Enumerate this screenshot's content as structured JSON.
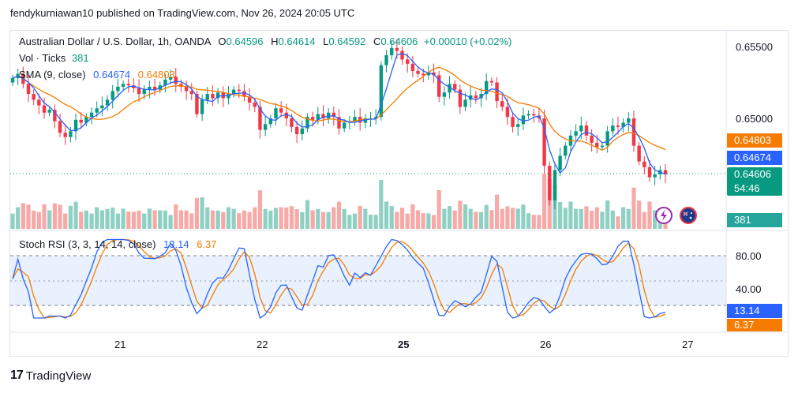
{
  "header": {
    "published_by": "fendykurniawan10 published on TradingView.com, Nov 26, 2024 20:05 UTC"
  },
  "legend": {
    "symbol": "Australian Dollar / U.S. Dollar, 1h, OANDA",
    "o_label": "O",
    "o_value": "0.64596",
    "h_label": "H",
    "h_value": "0.64614",
    "l_label": "L",
    "l_value": "0.64592",
    "c_label": "C",
    "c_value": "0.64606",
    "change": "+0.00010 (+0.02%)",
    "vol_label": "Vol · Ticks",
    "vol_value": "381",
    "sma_label": "SMA (9, close)",
    "sma_blue": "0.64674",
    "sma_orange": "0.64803",
    "stoch_label": "Stoch RSI (3, 3, 14, 14, close)",
    "stoch_k": "13.14",
    "stoch_d": "6.37"
  },
  "price_axis": {
    "ticks": [
      "0.65500",
      "0.65000"
    ],
    "tags": [
      {
        "label": "0.64803",
        "color": "#f57c00"
      },
      {
        "label": "0.64674",
        "color": "#2962ff"
      },
      {
        "label": "0.64606",
        "color": "#089981"
      },
      {
        "label": "54:46",
        "color": "#089981"
      },
      {
        "label": "381",
        "color": "#26a69a"
      }
    ]
  },
  "stoch_axis": {
    "ticks": [
      "80.00",
      "40.00"
    ],
    "tags": [
      {
        "label": "13.14",
        "color": "#2962ff"
      },
      {
        "label": "6.37",
        "color": "#f57c00"
      }
    ]
  },
  "time_axis": {
    "labels": [
      "21",
      "22",
      "25",
      "26",
      "27"
    ]
  },
  "colors": {
    "up": "#089981",
    "down": "#f23645",
    "sma_fast": "#2962ff",
    "sma_slow": "#f57c00",
    "vol_up": "#8fd0c4",
    "vol_down": "#f7a9a7"
  },
  "branding": {
    "logo_mark": "17",
    "logo_text": "TradingView"
  },
  "chart_data": {
    "type": "candlestick",
    "timeframe": "1h",
    "price_range": [
      0.6427,
      0.6558
    ],
    "close_series": [
      0.6528,
      0.6531,
      0.6524,
      0.6517,
      0.6513,
      0.6509,
      0.6504,
      0.6506,
      0.6498,
      0.649,
      0.6487,
      0.6491,
      0.6499,
      0.6497,
      0.6501,
      0.6504,
      0.6507,
      0.6509,
      0.6513,
      0.6519,
      0.6522,
      0.6524,
      0.6523,
      0.6521,
      0.6517,
      0.652,
      0.6522,
      0.652,
      0.6523,
      0.6527,
      0.6529,
      0.6524,
      0.6522,
      0.6519,
      0.6517,
      0.6503,
      0.6513,
      0.6517,
      0.6514,
      0.6518,
      0.6514,
      0.6517,
      0.652,
      0.6519,
      0.6515,
      0.6511,
      0.6508,
      0.6492,
      0.6496,
      0.65,
      0.6507,
      0.6504,
      0.65,
      0.6494,
      0.6489,
      0.6493,
      0.6501,
      0.6499,
      0.6503,
      0.65,
      0.6504,
      0.6501,
      0.6493,
      0.6497,
      0.6498,
      0.6501,
      0.6497,
      0.65,
      0.65,
      0.6501,
      0.6537,
      0.6544,
      0.6549,
      0.6547,
      0.6541,
      0.6538,
      0.6533,
      0.6531,
      0.653,
      0.6532,
      0.653,
      0.6515,
      0.6518,
      0.6524,
      0.652,
      0.6508,
      0.6513,
      0.6516,
      0.6514,
      0.6517,
      0.6526,
      0.6525,
      0.6512,
      0.6508,
      0.6501,
      0.6494,
      0.6496,
      0.6502,
      0.6503,
      0.6502,
      0.65,
      0.6467,
      0.6443,
      0.6464,
      0.6474,
      0.6481,
      0.6488,
      0.6491,
      0.6495,
      0.6488,
      0.6483,
      0.648,
      0.6481,
      0.6491,
      0.6495,
      0.6494,
      0.6497,
      0.65,
      0.6481,
      0.647,
      0.6466,
      0.6459,
      0.6461,
      0.6464,
      0.6461
    ],
    "sma_fast_last": 0.64674,
    "sma_slow_last": 0.64803,
    "volume_last": 381,
    "stoch_rsi": {
      "k_last": 13.14,
      "d_last": 6.37,
      "levels": [
        80,
        20
      ],
      "range": [
        0,
        100
      ]
    }
  }
}
